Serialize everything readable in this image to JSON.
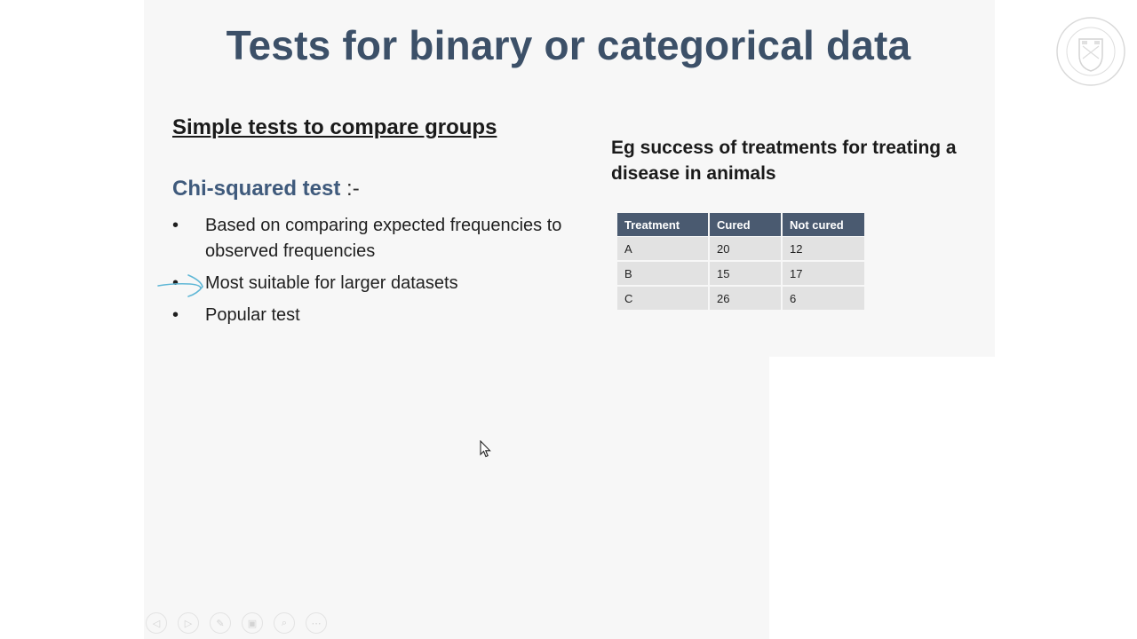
{
  "slide": {
    "title": "Tests for binary or categorical data",
    "subheading": "Simple tests to compare groups",
    "test_name": "Chi-squared test",
    "test_suffix": " :-",
    "bullets": [
      "Based on comparing expected frequencies to observed frequencies",
      "Most suitable for larger datasets",
      "Popular test"
    ],
    "bullet_glyph": "•",
    "example_title": "Eg success of treatments for treating a disease in animals",
    "table": {
      "headers": [
        "Treatment",
        "Cured",
        "Not cured"
      ],
      "rows": [
        [
          "A",
          "20",
          "12"
        ],
        [
          "B",
          "15",
          "17"
        ],
        [
          "C",
          "26",
          "6"
        ]
      ]
    },
    "logo": "university-crest-logo"
  },
  "toolbar": {
    "buttons": [
      {
        "icon": "previous-icon",
        "glyph": "◁"
      },
      {
        "icon": "next-icon",
        "glyph": "▷"
      },
      {
        "icon": "pen-icon",
        "glyph": "✎"
      },
      {
        "icon": "slides-icon",
        "glyph": "▣"
      },
      {
        "icon": "zoom-icon",
        "glyph": "⌕"
      },
      {
        "icon": "more-icon",
        "glyph": "⋯"
      }
    ]
  },
  "colors": {
    "title": "#3c5068",
    "test_name": "#3f5a7c",
    "table_header": "#4a5a70",
    "table_cell": "#e2e2e2",
    "annotation": "#5fb7d6"
  }
}
